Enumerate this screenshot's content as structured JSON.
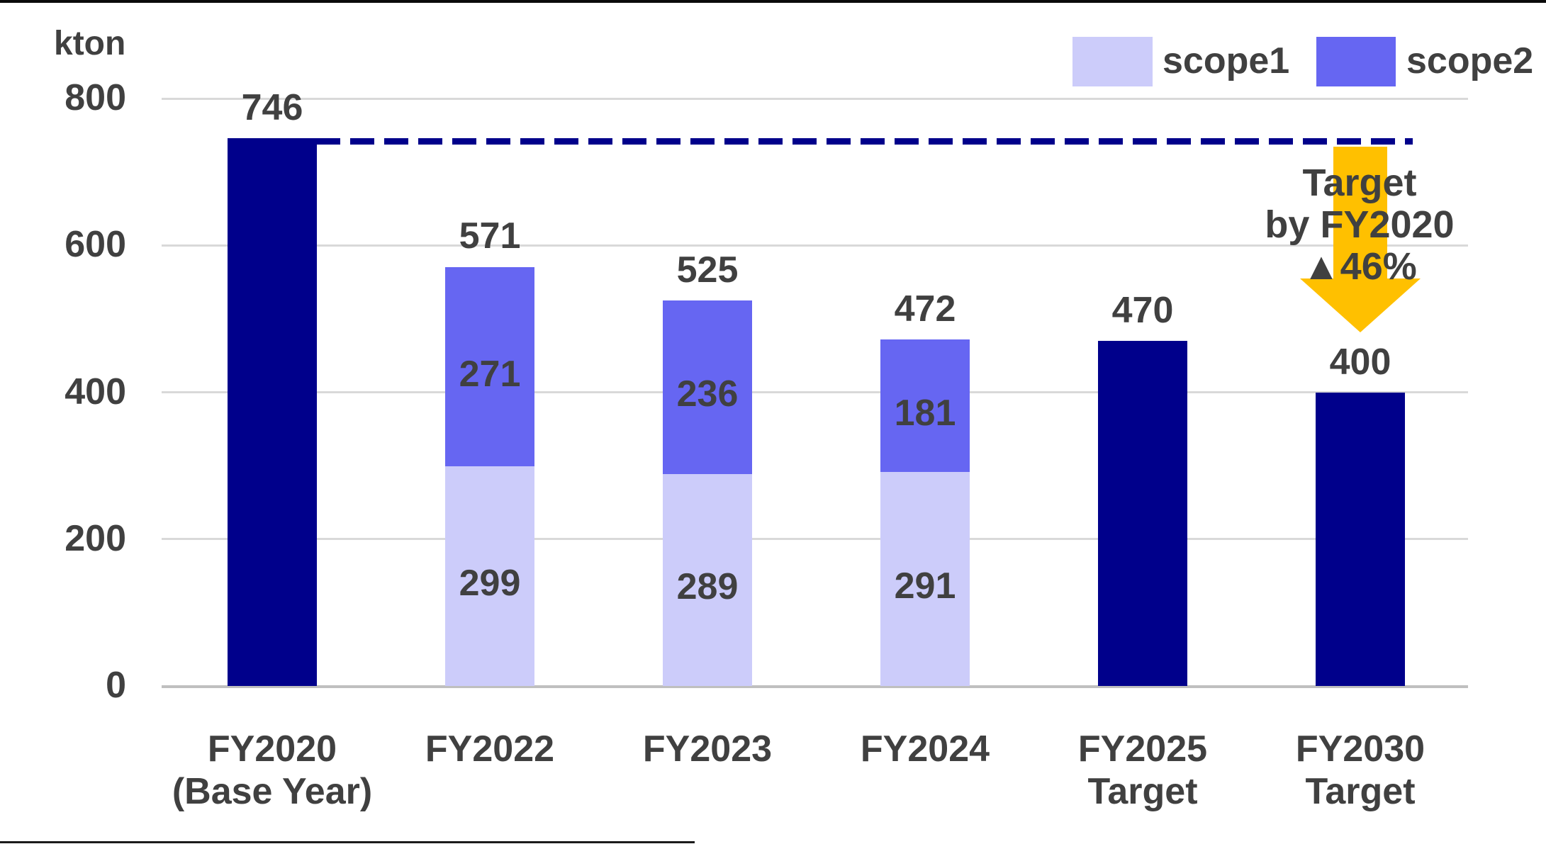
{
  "unit_label": "kton",
  "legend": {
    "items": [
      {
        "label": "scope1",
        "color": "#CCCCFA"
      },
      {
        "label": "scope2",
        "color": "#6666F2"
      }
    ]
  },
  "colors": {
    "navy": "#00008B",
    "scope1": "#CCCCFA",
    "scope2": "#6666F2",
    "gold": "#FFC000",
    "text": "#404040",
    "gridline": "#D9D9D9",
    "baseline": "#BFBFBF"
  },
  "chart_data": {
    "type": "bar",
    "stacked": true,
    "unit": "kton",
    "categories": [
      "FY2020 (Base Year)",
      "FY2022",
      "FY2023",
      "FY2024",
      "FY2025 Target",
      "FY2030 Target"
    ],
    "category_lines": [
      [
        "FY2020",
        "(Base Year)"
      ],
      [
        "FY2022"
      ],
      [
        "FY2023"
      ],
      [
        "FY2024"
      ],
      [
        "FY2025",
        "Target"
      ],
      [
        "FY2030",
        "Target"
      ]
    ],
    "series": [
      {
        "name": "scope1",
        "color": "#CCCCFA",
        "values": [
          null,
          299,
          289,
          291,
          null,
          null
        ]
      },
      {
        "name": "scope2",
        "color": "#6666F2",
        "values": [
          null,
          271,
          236,
          181,
          null,
          null
        ]
      },
      {
        "name": "total-only",
        "color": "#00008B",
        "in_legend": false,
        "values": [
          746,
          null,
          null,
          null,
          470,
          400
        ]
      }
    ],
    "totals": [
      746,
      571,
      525,
      472,
      470,
      400
    ],
    "y_axis": {
      "label": "kton",
      "min": 0,
      "max": 800,
      "ticks": [
        0,
        200,
        400,
        600,
        800
      ]
    },
    "grid": true,
    "legend_position": "top-right",
    "reference_line": {
      "value": 746,
      "style": "dashed",
      "color": "#00008B"
    },
    "annotation": {
      "lines": [
        "Target",
        "by FY2020",
        "▲46%"
      ],
      "arrow_color": "#FFC000",
      "target_category": "FY2030 Target"
    }
  }
}
